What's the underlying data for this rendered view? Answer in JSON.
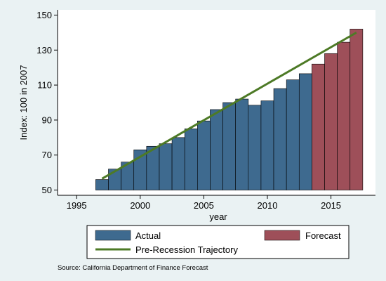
{
  "chart_data": {
    "type": "bar",
    "xlabel": "year",
    "ylabel": "Index: 100 in 2007",
    "xlim": [
      1993.5,
      2018.5
    ],
    "ylim": [
      47,
      153
    ],
    "xticks": [
      1995,
      2000,
      2005,
      2010,
      2015
    ],
    "yticks": [
      50,
      70,
      90,
      110,
      130,
      150
    ],
    "grid": false,
    "bar_base": 50,
    "series": [
      {
        "name": "Actual",
        "color": "#3e6a8f",
        "x": [
          1997,
          1998,
          1999,
          2000,
          2001,
          2002,
          2003,
          2004,
          2005,
          2006,
          2007,
          2008,
          2009,
          2010,
          2011,
          2012,
          2013
        ],
        "values": [
          56,
          62,
          66,
          73,
          75,
          76.5,
          80,
          85,
          89.5,
          96,
          100,
          102,
          98.5,
          101,
          108,
          113,
          116.5
        ]
      },
      {
        "name": "Forecast",
        "color": "#9e4f59",
        "x": [
          2014,
          2015,
          2016,
          2017
        ],
        "values": [
          122,
          128,
          134.5,
          142
        ]
      }
    ],
    "line": {
      "name": "Pre-Recession Trajectory",
      "color": "#4d7a26",
      "x": [
        1997,
        2017
      ],
      "y": [
        56.5,
        140
      ]
    },
    "legend_position": "bottom",
    "note": "Source: California Department of Finance Forecast"
  }
}
